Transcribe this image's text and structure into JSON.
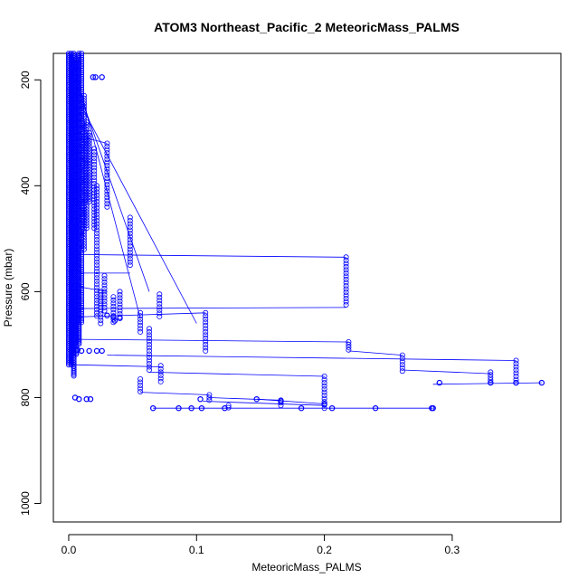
{
  "chart_data": {
    "type": "scatter",
    "title": "ATOM3 Northeast_Pacific_2 MeteoricMass_PALMS",
    "xlabel": "MeteoricMass_PALMS",
    "ylabel": "Pressure (mbar)",
    "xlim": [
      -0.012,
      0.385
    ],
    "ylim": [
      1035,
      150
    ],
    "y_reversed": true,
    "x_ticks": [
      0.0,
      0.1,
      0.2,
      0.3
    ],
    "x_tick_labels": [
      "0.0",
      "0.1",
      "0.2",
      "0.3"
    ],
    "y_ticks": [
      200,
      400,
      600,
      800,
      1000
    ],
    "y_tick_labels": [
      "200",
      "400",
      "600",
      "800",
      "1000"
    ],
    "grid": false,
    "legend": "none",
    "marker": "open-circle",
    "color": "#0000ff",
    "columns": [
      {
        "x": 0.0,
        "p0": 150,
        "p1": 740,
        "step": 3
      },
      {
        "x": 0.002,
        "p0": 150,
        "p1": 740,
        "step": 3
      },
      {
        "x": 0.004,
        "p0": 150,
        "p1": 760,
        "step": 3
      },
      {
        "x": 0.006,
        "p0": 160,
        "p1": 720,
        "step": 3
      },
      {
        "x": 0.008,
        "p0": 150,
        "p1": 700,
        "step": 3
      },
      {
        "x": 0.01,
        "p0": 150,
        "p1": 660,
        "step": 4
      },
      {
        "x": 0.012,
        "p0": 230,
        "p1": 520,
        "step": 5
      },
      {
        "x": 0.014,
        "p0": 280,
        "p1": 480,
        "step": 5
      },
      {
        "x": 0.016,
        "p0": 300,
        "p1": 430,
        "step": 5
      },
      {
        "x": 0.02,
        "p0": 330,
        "p1": 480,
        "step": 6
      },
      {
        "x": 0.022,
        "p0": 400,
        "p1": 650,
        "step": 6
      },
      {
        "x": 0.025,
        "p0": 600,
        "p1": 660,
        "step": 6
      },
      {
        "x": 0.028,
        "p0": 570,
        "p1": 640,
        "step": 6
      },
      {
        "x": 0.03,
        "p0": 320,
        "p1": 440,
        "step": 6
      },
      {
        "x": 0.035,
        "p0": 610,
        "p1": 660,
        "step": 6
      },
      {
        "x": 0.04,
        "p0": 600,
        "p1": 650,
        "step": 6
      },
      {
        "x": 0.048,
        "p0": 460,
        "p1": 550,
        "step": 6
      },
      {
        "x": 0.056,
        "p0": 640,
        "p1": 680,
        "step": 6
      },
      {
        "x": 0.056,
        "p0": 765,
        "p1": 790,
        "step": 6
      },
      {
        "x": 0.063,
        "p0": 670,
        "p1": 750,
        "step": 6
      },
      {
        "x": 0.071,
        "p0": 605,
        "p1": 650,
        "step": 6
      },
      {
        "x": 0.072,
        "p0": 740,
        "p1": 770,
        "step": 6
      },
      {
        "x": 0.107,
        "p0": 640,
        "p1": 715,
        "step": 6
      },
      {
        "x": 0.11,
        "p0": 795,
        "p1": 805,
        "step": 5
      },
      {
        "x": 0.125,
        "p0": 815,
        "p1": 822,
        "step": 4
      },
      {
        "x": 0.166,
        "p0": 805,
        "p1": 815,
        "step": 5
      },
      {
        "x": 0.2,
        "p0": 760,
        "p1": 820,
        "step": 6
      },
      {
        "x": 0.217,
        "p0": 535,
        "p1": 630,
        "step": 6
      },
      {
        "x": 0.219,
        "p0": 695,
        "p1": 710,
        "step": 5
      },
      {
        "x": 0.261,
        "p0": 720,
        "p1": 750,
        "step": 6
      },
      {
        "x": 0.33,
        "p0": 752,
        "p1": 772,
        "step": 5
      },
      {
        "x": 0.35,
        "p0": 730,
        "p1": 772,
        "step": 6
      }
    ],
    "points": [
      [
        0.019,
        195
      ],
      [
        0.021,
        195
      ],
      [
        0.026,
        195
      ],
      [
        0.03,
        645
      ],
      [
        0.035,
        648
      ],
      [
        0.04,
        650
      ],
      [
        0.036,
        655
      ],
      [
        0.007,
        710
      ],
      [
        0.01,
        712
      ],
      [
        0.016,
        712
      ],
      [
        0.022,
        712
      ],
      [
        0.026,
        712
      ],
      [
        0.005,
        800
      ],
      [
        0.008,
        803
      ],
      [
        0.014,
        803
      ],
      [
        0.017,
        803
      ],
      [
        0.103,
        803
      ],
      [
        0.147,
        803
      ],
      [
        0.066,
        820
      ],
      [
        0.086,
        820
      ],
      [
        0.096,
        820
      ],
      [
        0.104,
        820
      ],
      [
        0.122,
        820
      ],
      [
        0.182,
        820
      ],
      [
        0.206,
        820
      ],
      [
        0.24,
        820
      ],
      [
        0.285,
        820
      ],
      [
        0.284,
        820
      ],
      [
        0.29,
        772
      ],
      [
        0.33,
        772
      ],
      [
        0.35,
        772
      ],
      [
        0.37,
        772
      ],
      [
        0.2,
        812
      ],
      [
        0.166,
        807
      ]
    ],
    "segments": [
      [
        [
          0.006,
          530
        ],
        [
          0.217,
          535
        ]
      ],
      [
        [
          0.008,
          565
        ],
        [
          0.048,
          565
        ]
      ],
      [
        [
          0.006,
          590
        ],
        [
          0.03,
          600
        ]
      ],
      [
        [
          0.003,
          632
        ],
        [
          0.217,
          630
        ]
      ],
      [
        [
          0.004,
          648
        ],
        [
          0.107,
          640
        ]
      ],
      [
        [
          0.006,
          690
        ],
        [
          0.219,
          695
        ]
      ],
      [
        [
          0.03,
          720
        ],
        [
          0.35,
          730
        ]
      ],
      [
        [
          0.219,
          712
        ],
        [
          0.261,
          720
        ]
      ],
      [
        [
          0.003,
          738
        ],
        [
          0.072,
          742
        ]
      ],
      [
        [
          0.261,
          748
        ],
        [
          0.33,
          755
        ]
      ],
      [
        [
          0.063,
          752
        ],
        [
          0.2,
          760
        ]
      ],
      [
        [
          0.056,
          790
        ],
        [
          0.11,
          795
        ]
      ],
      [
        [
          0.11,
          800
        ],
        [
          0.166,
          805
        ]
      ],
      [
        [
          0.147,
          803
        ],
        [
          0.2,
          812
        ]
      ],
      [
        [
          0.105,
          807
        ],
        [
          0.2,
          815
        ]
      ],
      [
        [
          0.066,
          820
        ],
        [
          0.285,
          820
        ]
      ],
      [
        [
          0.285,
          775
        ],
        [
          0.37,
          772
        ]
      ],
      [
        [
          0.004,
          170
        ],
        [
          0.056,
          650
        ]
      ],
      [
        [
          0.01,
          250
        ],
        [
          0.1,
          660
        ]
      ],
      [
        [
          0.002,
          180
        ],
        [
          0.063,
          600
        ]
      ],
      [
        [
          0.014,
          310
        ],
        [
          0.03,
          320
        ]
      ],
      [
        [
          0.0,
          740
        ],
        [
          0.008,
          690
        ]
      ]
    ]
  }
}
